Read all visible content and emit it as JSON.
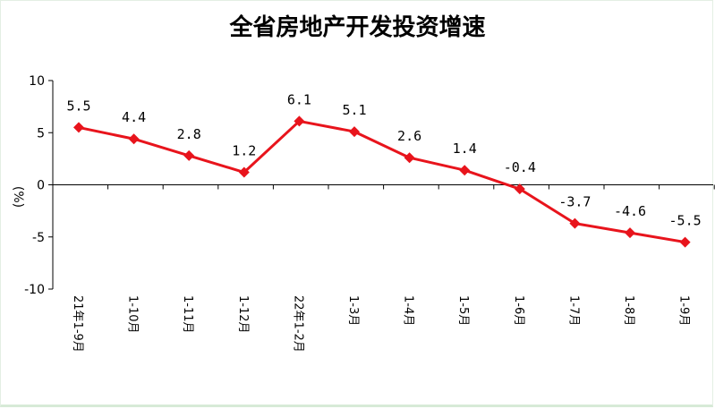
{
  "chart_data": {
    "type": "line",
    "title": "全省房地产开发投资增速",
    "ylabel": "(%)",
    "xlabel": "",
    "ylim": [
      -10,
      10
    ],
    "yticks": [
      -10,
      -5,
      0,
      5,
      10
    ],
    "categories": [
      "21年1-9月",
      "1-10月",
      "1-11月",
      "1-12月",
      "22年1-2月",
      "1-3月",
      "1-4月",
      "1-5月",
      "1-6月",
      "1-7月",
      "1-8月",
      "1-9月"
    ],
    "values": [
      5.5,
      4.4,
      2.8,
      1.2,
      6.1,
      5.1,
      2.6,
      1.4,
      -0.4,
      -3.7,
      -4.6,
      -5.5
    ],
    "value_labels": [
      "5.5",
      "4.4",
      "2.8",
      "1.2",
      "6.1",
      "5.1",
      "2.6",
      "1.4",
      "-0.4",
      "-3.7",
      "-4.6",
      "-5.5"
    ],
    "series_color": "#e8141c",
    "grid": false,
    "legend": "none"
  }
}
